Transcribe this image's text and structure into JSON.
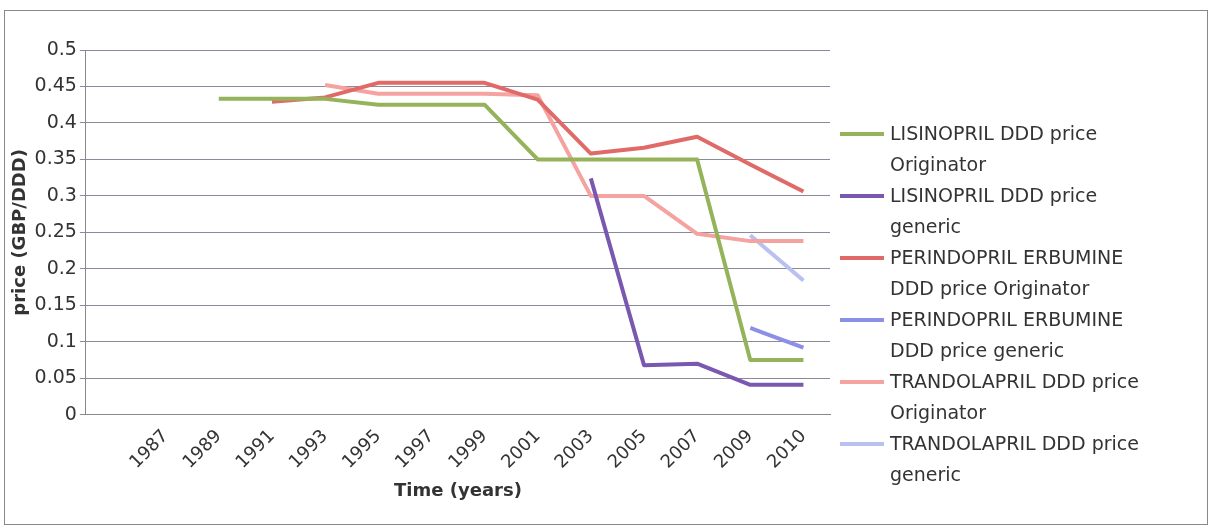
{
  "chart_data": {
    "type": "line",
    "xlabel": "Time (years)",
    "ylabel": "price (GBP/DDD)",
    "categories": [
      null,
      "1987",
      "1989",
      "1991",
      "1993",
      "1995",
      "1997",
      "1999",
      "2001",
      "2003",
      "2005",
      "2007",
      "2009",
      "2010"
    ],
    "ylim": [
      0,
      0.5
    ],
    "yticks": [
      0,
      0.05,
      0.1,
      0.15,
      0.2,
      0.25,
      0.3,
      0.35,
      0.4,
      0.45,
      0.5
    ],
    "grid": "y",
    "legend": "right",
    "marker": "none",
    "line_style": "solid",
    "series": [
      {
        "name": "LISINOPRIL DDD price Originator",
        "color": "#94b35a",
        "values": [
          null,
          null,
          0.433,
          0.433,
          0.433,
          0.425,
          0.425,
          0.425,
          0.35,
          0.35,
          0.35,
          0.35,
          0.075,
          0.075
        ]
      },
      {
        "name": "LISINOPRIL DDD price generic",
        "color": "#7a58b0",
        "values": [
          null,
          null,
          null,
          null,
          null,
          null,
          null,
          null,
          null,
          0.324,
          0.068,
          0.07,
          0.041,
          0.041
        ]
      },
      {
        "name": "PERINDOPRIL ERBUMINE DDD price Originator",
        "color": "#e06a68",
        "values": [
          null,
          null,
          null,
          0.429,
          0.435,
          0.455,
          0.455,
          0.455,
          0.432,
          0.358,
          0.366,
          0.381,
          0.343,
          0.306
        ]
      },
      {
        "name": "PERINDOPRIL ERBUMINE DDD price generic",
        "color": "#8c8fe6",
        "values": [
          null,
          null,
          null,
          null,
          null,
          null,
          null,
          null,
          null,
          null,
          null,
          null,
          0.119,
          0.092
        ]
      },
      {
        "name": "TRANDOLAPRIL DDD price Originator",
        "color": "#f5a3a0",
        "values": [
          null,
          null,
          null,
          null,
          0.452,
          0.44,
          0.44,
          0.44,
          0.438,
          0.3,
          0.3,
          0.248,
          0.238,
          0.238
        ]
      },
      {
        "name": "TRANDOLAPRIL DDD price generic",
        "color": "#b9c0f2",
        "values": [
          null,
          null,
          null,
          null,
          null,
          null,
          null,
          null,
          null,
          null,
          null,
          null,
          0.246,
          0.184
        ]
      }
    ]
  }
}
